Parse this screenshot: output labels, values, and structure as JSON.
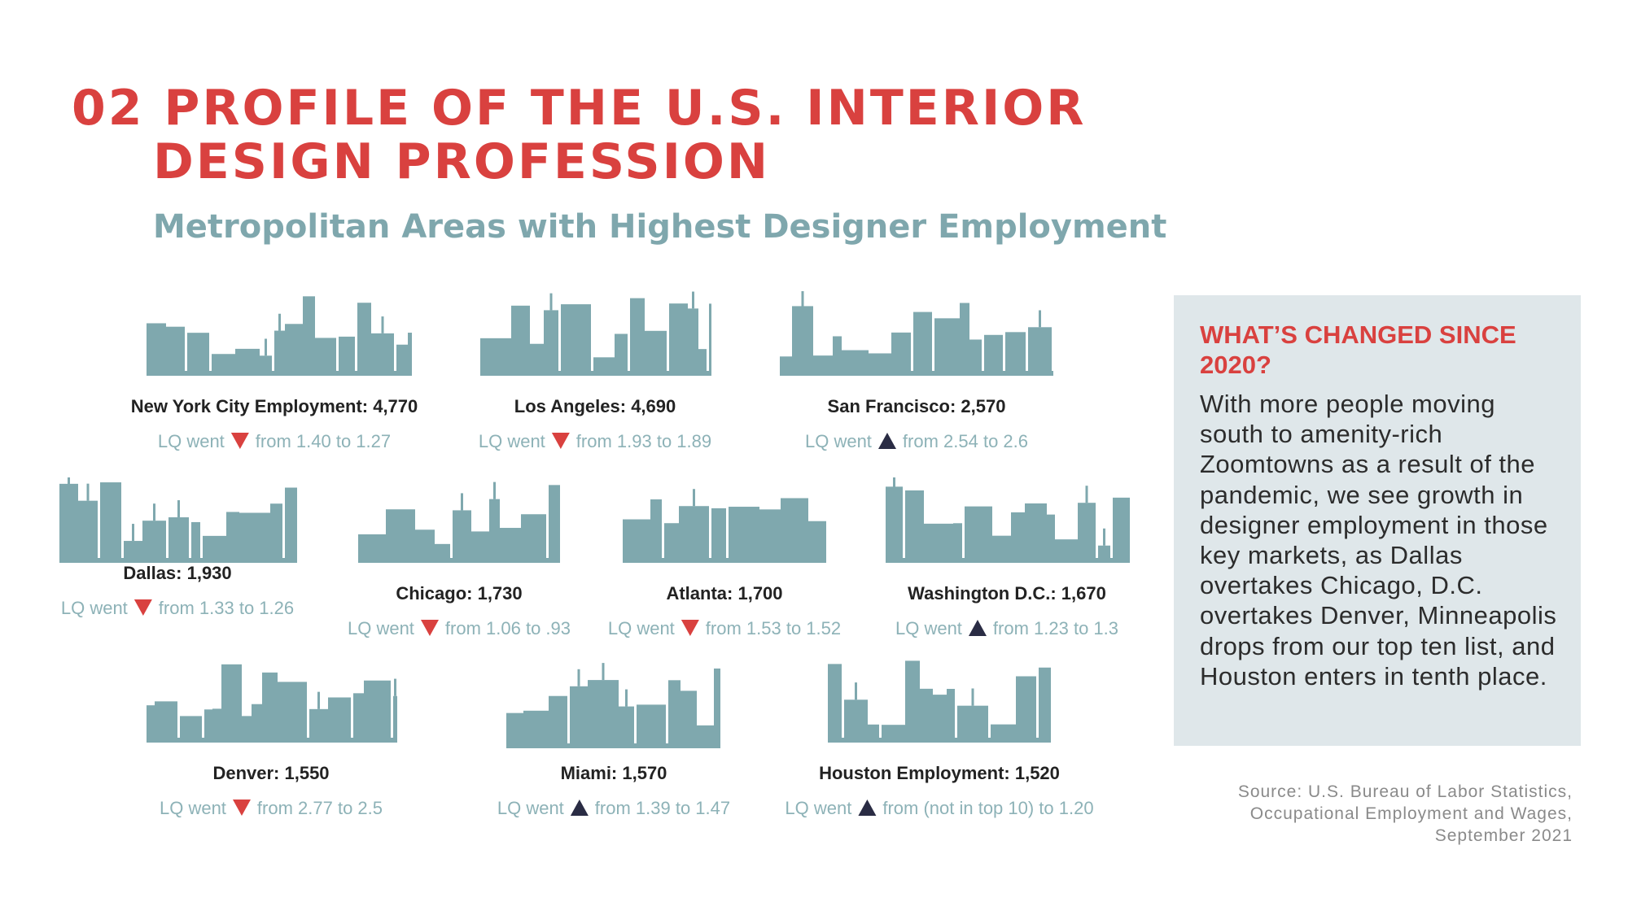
{
  "header": {
    "title_line1": "02 PROFILE OF THE U.S. INTERIOR",
    "title_line2": "DESIGN PROFESSION",
    "subtitle": "Metropolitan Areas with Highest Designer Employment"
  },
  "colors": {
    "accent": "#d9413f",
    "skyline": "#7fa8ae",
    "up_arrow": "#2a2c44",
    "down_arrow": "#d9413f",
    "panel_bg": "#dfe7ea"
  },
  "cities": [
    {
      "name": "New York City Employment: 4,770",
      "lq_prefix": "LQ went",
      "direction": "down",
      "lq_change": "from 1.40 to 1.27"
    },
    {
      "name": "Los Angeles: 4,690",
      "lq_prefix": "LQ went",
      "direction": "down",
      "lq_change": "from 1.93 to 1.89"
    },
    {
      "name": "San Francisco: 2,570",
      "lq_prefix": "LQ went",
      "direction": "up",
      "lq_change": "from 2.54 to 2.6"
    },
    {
      "name": "Dallas: 1,930",
      "lq_prefix": "LQ went",
      "direction": "down",
      "lq_change": "from 1.33 to 1.26"
    },
    {
      "name": "Chicago: 1,730",
      "lq_prefix": "LQ went",
      "direction": "down",
      "lq_change": "from 1.06  to .93"
    },
    {
      "name": "Atlanta: 1,700",
      "lq_prefix": "LQ went",
      "direction": "down",
      "lq_change": "from 1.53 to 1.52"
    },
    {
      "name": "Washington D.C.: 1,670",
      "lq_prefix": "LQ went",
      "direction": "up",
      "lq_change": "from 1.23 to 1.3"
    },
    {
      "name": "Denver: 1,550",
      "lq_prefix": "LQ went",
      "direction": "down",
      "lq_change": "from 2.77 to 2.5"
    },
    {
      "name": "Miami: 1,570",
      "lq_prefix": "LQ went",
      "direction": "up",
      "lq_change": "from 1.39 to 1.47"
    },
    {
      "name": "Houston Employment: 1,520",
      "lq_prefix": "LQ went",
      "direction": "up",
      "lq_change": "from (not in top 10)  to 1.20"
    }
  ],
  "panel": {
    "heading": "WHAT’S CHANGED SINCE 2020?",
    "body": "With more people moving south to amenity-rich Zoomtowns as a result of the pandemic, we see growth in designer employment in those key markets, as Dallas overtakes Chicago, D.C. overtakes Denver, Minneapolis drops from our top ten list, and Houston enters in tenth place."
  },
  "source": {
    "line1": "Source: U.S. Bureau of Labor Statistics,",
    "line2": "Occupational Employment and Wages,",
    "line3": "September 2021"
  }
}
